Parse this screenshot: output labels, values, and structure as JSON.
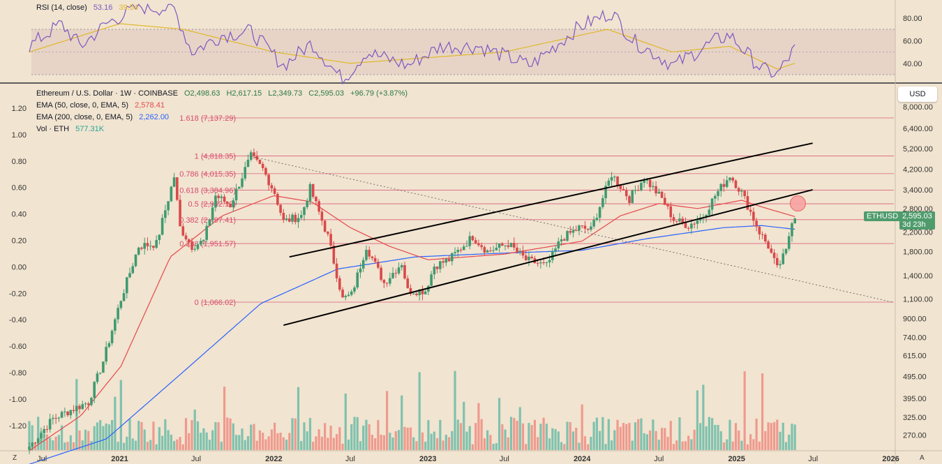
{
  "rsi_pane": {
    "title": "RSI (14, close)",
    "value": "53.16",
    "ma_value": "39.54"
  },
  "legend": {
    "symbol": "Ethereum / U.S. Dollar · 1W · COINBASE",
    "open": "O2,498.63",
    "high": "H2,617.15",
    "low": "L2,349.73",
    "close": "C2,595.03",
    "change": "+96.79 (+3.87%)",
    "ema50_label": "EMA (50, close, 0, EMA, 5)",
    "ema50_value": "2,578.41",
    "ema200_label": "EMA (200, close, 0, EMA, 5)",
    "ema200_value": "2,262.00",
    "vol_label": "Vol · ETH",
    "vol_value": "577.31K"
  },
  "price_scale": {
    "currency": "USD",
    "symbol_tag": "ETHUSD",
    "last_price": "2,595.03",
    "countdown": "3d 23h"
  },
  "corner_buttons": {
    "left": "Z",
    "right": "A"
  },
  "colors": {
    "up": "#3f9a70",
    "down": "#d9494a",
    "ema50": "#e5484d",
    "ema200": "#2962ff",
    "fib": "#d84a6d",
    "rsi": "#7e57c2",
    "rsi_ma": "#e0b72a",
    "volume_up": "#7fc2ae",
    "volume_down": "#ef9a8e"
  },
  "chart_data": {
    "type": "candlestick",
    "interval": "1W",
    "log_scale": true,
    "x_axis_labels": [
      "Jul",
      "2021",
      "Jul",
      "2022",
      "Jul",
      "2023",
      "Jul",
      "2024",
      "Jul",
      "2025",
      "Jul",
      "2026"
    ],
    "price_axis_labels": [
      "8,000.00",
      "6,400.00",
      "5,200.00",
      "4,200.00",
      "3,400.00",
      "2,800.00",
      "2,200.00",
      "1,800.00",
      "1,400.00",
      "1,100.00",
      "900.00",
      "740.00",
      "615.00",
      "495.00",
      "395.00",
      "325.00",
      "270.00"
    ],
    "left_axis_labels": [
      "1.20",
      "1.00",
      "0.80",
      "0.60",
      "0.40",
      "0.20",
      "0.00",
      "-0.20",
      "-0.40",
      "-0.60",
      "-0.80",
      "-1.00",
      "-1.20"
    ],
    "rsi_axis_labels": [
      "80.00",
      "60.00",
      "40.00"
    ],
    "rsi_band": [
      30,
      70
    ],
    "fib_levels": [
      {
        "label": "1.618 (7,137.29)",
        "price": 7137.29
      },
      {
        "label": "1 (4,818.35)",
        "price": 4818.35
      },
      {
        "label": "0.786 (4,015.35)",
        "price": 4015.35
      },
      {
        "label": "0.618 (3,384.96)",
        "price": 3384.96
      },
      {
        "label": "0.5 (2,942.19)",
        "price": 2942.19
      },
      {
        "label": "0.382 (2,497.41)",
        "price": 2497.41
      },
      {
        "label": "0.236 (1,951.57)",
        "price": 1951.57
      },
      {
        "label": "0 (1,066.02)",
        "price": 1066.02
      }
    ],
    "anchors": [
      [
        "2020-06-01",
        240
      ],
      [
        "2020-07-27",
        320
      ],
      [
        "2020-09-07",
        350
      ],
      [
        "2020-10-19",
        380
      ],
      [
        "2020-11-23",
        580
      ],
      [
        "2021-01-04",
        1100
      ],
      [
        "2021-02-15",
        1900
      ],
      [
        "2021-03-29",
        1950
      ],
      [
        "2021-05-10",
        3900
      ],
      [
        "2021-05-24",
        2300
      ],
      [
        "2021-06-21",
        1900
      ],
      [
        "2021-07-19",
        2000
      ],
      [
        "2021-08-16",
        3200
      ],
      [
        "2021-09-20",
        2900
      ],
      [
        "2021-10-25",
        4200
      ],
      [
        "2021-11-08",
        4800
      ],
      [
        "2021-12-06",
        4200
      ],
      [
        "2022-01-03",
        3300
      ],
      [
        "2022-01-24",
        2450
      ],
      [
        "2022-03-07",
        2600
      ],
      [
        "2022-03-28",
        3450
      ],
      [
        "2022-05-09",
        2100
      ],
      [
        "2022-06-13",
        1100
      ],
      [
        "2022-07-04",
        1150
      ],
      [
        "2022-08-08",
        1900
      ],
      [
        "2022-09-19",
        1300
      ],
      [
        "2022-10-31",
        1600
      ],
      [
        "2022-11-14",
        1200
      ],
      [
        "2022-12-26",
        1200
      ],
      [
        "2023-01-16",
        1550
      ],
      [
        "2023-02-20",
        1650
      ],
      [
        "2023-04-17",
        2100
      ],
      [
        "2023-05-22",
        1800
      ],
      [
        "2023-07-10",
        1950
      ],
      [
        "2023-08-21",
        1650
      ],
      [
        "2023-10-09",
        1550
      ],
      [
        "2023-11-13",
        2050
      ],
      [
        "2023-12-25",
        2300
      ],
      [
        "2024-01-22",
        2250
      ],
      [
        "2024-03-11",
        4000
      ],
      [
        "2024-04-22",
        3100
      ],
      [
        "2024-05-27",
        3850
      ],
      [
        "2024-07-08",
        3100
      ],
      [
        "2024-08-05",
        2500
      ],
      [
        "2024-09-09",
        2350
      ],
      [
        "2024-10-14",
        2600
      ],
      [
        "2024-11-11",
        3200
      ],
      [
        "2024-12-16",
        3950
      ],
      [
        "2025-01-13",
        3300
      ],
      [
        "2025-02-03",
        2700
      ],
      [
        "2025-02-24",
        2200
      ],
      [
        "2025-03-17",
        1900
      ],
      [
        "2025-04-07",
        1500
      ],
      [
        "2025-04-28",
        1800
      ],
      [
        "2025-05-12",
        2500
      ],
      [
        "2025-05-19",
        2595
      ]
    ],
    "ema50_anchors": [
      [
        "2020-06-01",
        230
      ],
      [
        "2020-10-01",
        330
      ],
      [
        "2021-01-04",
        550
      ],
      [
        "2021-05-01",
        1700
      ],
      [
        "2021-09-01",
        2600
      ],
      [
        "2022-01-01",
        3200
      ],
      [
        "2022-04-01",
        3000
      ],
      [
        "2022-07-01",
        2300
      ],
      [
        "2022-10-01",
        1900
      ],
      [
        "2023-01-01",
        1650
      ],
      [
        "2023-07-01",
        1750
      ],
      [
        "2024-01-01",
        2000
      ],
      [
        "2024-04-01",
        2600
      ],
      [
        "2024-07-01",
        2950
      ],
      [
        "2024-10-01",
        2800
      ],
      [
        "2025-01-13",
        3050
      ],
      [
        "2025-03-01",
        2850
      ],
      [
        "2025-05-19",
        2578
      ]
    ],
    "ema200_anchors": [
      [
        "2020-06-01",
        200
      ],
      [
        "2020-12-01",
        260
      ],
      [
        "2021-06-01",
        520
      ],
      [
        "2021-12-01",
        1050
      ],
      [
        "2022-06-01",
        1500
      ],
      [
        "2022-12-01",
        1700
      ],
      [
        "2023-06-01",
        1760
      ],
      [
        "2024-01-01",
        1820
      ],
      [
        "2024-06-01",
        2050
      ],
      [
        "2024-12-01",
        2300
      ],
      [
        "2025-03-01",
        2350
      ],
      [
        "2025-05-19",
        2262
      ]
    ],
    "rsi_anchors": [
      [
        "2020-06-01",
        55
      ],
      [
        "2020-08-15",
        75
      ],
      [
        "2020-10-01",
        55
      ],
      [
        "2020-12-01",
        75
      ],
      [
        "2021-02-15",
        90
      ],
      [
        "2021-05-10",
        88
      ],
      [
        "2021-06-21",
        50
      ],
      [
        "2021-09-01",
        65
      ],
      [
        "2021-11-08",
        68
      ],
      [
        "2022-01-24",
        38
      ],
      [
        "2022-04-01",
        58
      ],
      [
        "2022-06-13",
        25
      ],
      [
        "2022-08-08",
        50
      ],
      [
        "2022-11-14",
        38
      ],
      [
        "2023-02-01",
        55
      ],
      [
        "2023-05-01",
        55
      ],
      [
        "2023-09-01",
        38
      ],
      [
        "2023-12-25",
        72
      ],
      [
        "2024-03-11",
        85
      ],
      [
        "2024-05-01",
        60
      ],
      [
        "2024-08-05",
        38
      ],
      [
        "2024-11-11",
        60
      ],
      [
        "2024-12-16",
        65
      ],
      [
        "2025-03-01",
        35
      ],
      [
        "2025-04-07",
        30
      ],
      [
        "2025-05-19",
        53
      ]
    ],
    "rsi_ma_anchors": [
      [
        "2020-06-01",
        50
      ],
      [
        "2021-01-01",
        75
      ],
      [
        "2021-06-01",
        70
      ],
      [
        "2022-01-01",
        50
      ],
      [
        "2022-07-01",
        40
      ],
      [
        "2023-01-01",
        45
      ],
      [
        "2023-07-01",
        50
      ],
      [
        "2024-03-01",
        70
      ],
      [
        "2024-08-01",
        50
      ],
      [
        "2024-12-16",
        55
      ],
      [
        "2025-04-07",
        35
      ],
      [
        "2025-05-19",
        40
      ]
    ],
    "trendlines": [
      {
        "name": "channel-upper",
        "from": [
          "2022-02-07",
          1700
        ],
        "to": [
          "2025-06-30",
          5500
        ],
        "style": "solid"
      },
      {
        "name": "channel-lower",
        "from": [
          "2022-01-24",
          840
        ],
        "to": [
          "2025-06-30",
          3400
        ],
        "style": "solid"
      },
      {
        "name": "descending-dotted",
        "from": [
          "2021-11-08",
          4800
        ],
        "to": [
          "2026-01-05",
          1066
        ],
        "style": "dotted"
      }
    ],
    "highlight_circle": {
      "date": "2025-05-26",
      "price": 2950
    }
  }
}
